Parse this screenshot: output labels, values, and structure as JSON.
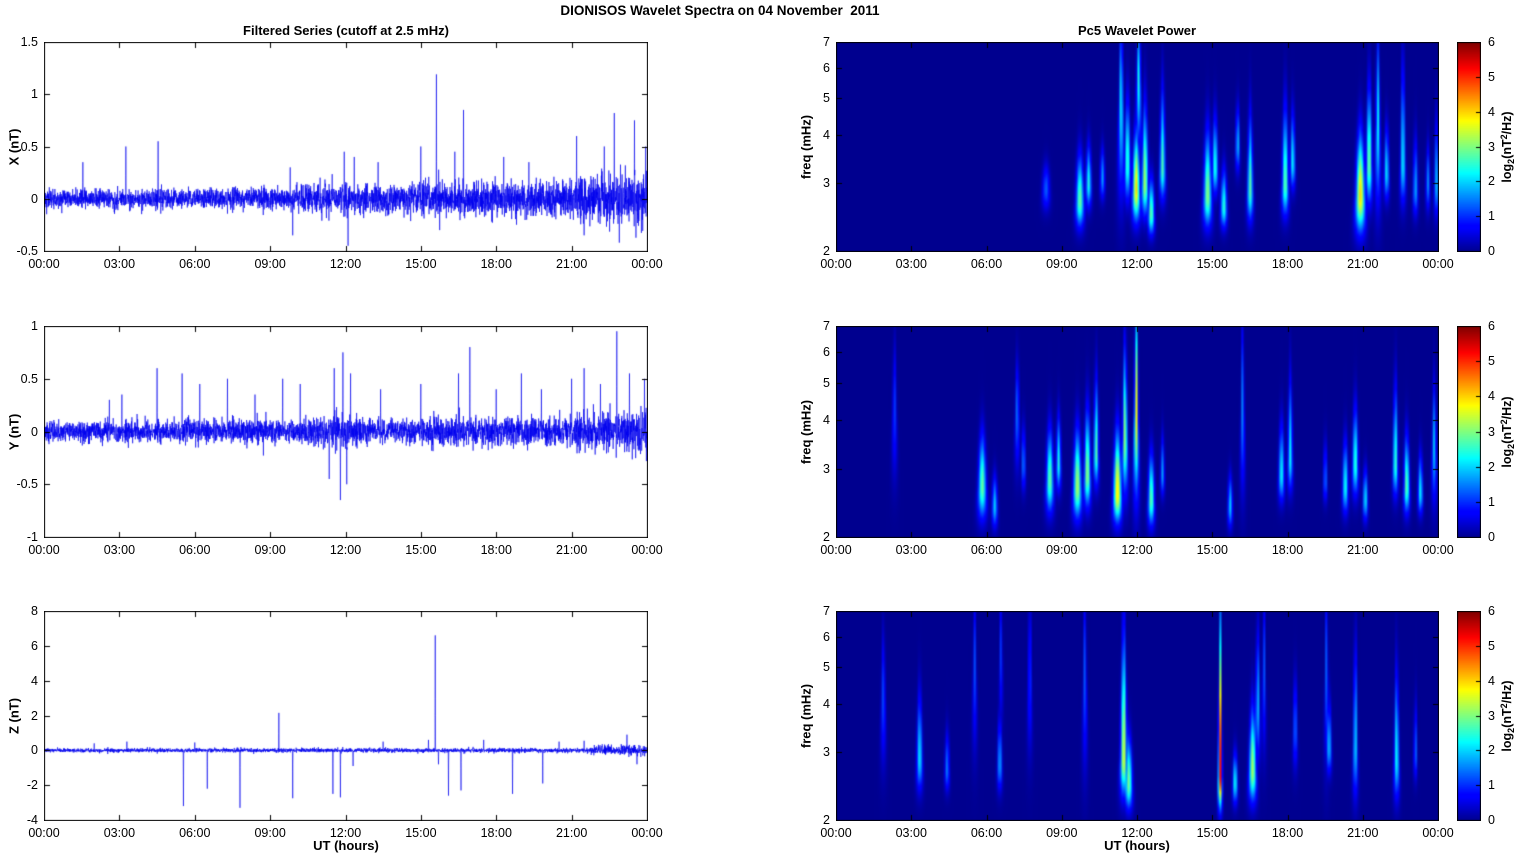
{
  "figure_title": "DIONISOS Wavelet Spectra on 04 November  2011",
  "titles": {
    "left": "Filtered Series (cutoff at 2.5 mHz)",
    "right": "Pc5 Wavelet Power"
  },
  "xlabel": "UT (hours)",
  "time_axis": {
    "tick_labels": [
      "00:00",
      "03:00",
      "06:00",
      "09:00",
      "12:00",
      "15:00",
      "18:00",
      "21:00",
      "00:00"
    ],
    "tick_hours": [
      0,
      3,
      6,
      9,
      12,
      15,
      18,
      21,
      24
    ],
    "range_hours": [
      0,
      24
    ]
  },
  "colorbar": {
    "label": "log2(nT^2/Hz)",
    "label_parts": {
      "pre": "log",
      "sub": "2",
      "mid": "(nT",
      "sup": "2",
      "post": "/Hz)"
    },
    "tick_labels": [
      "0",
      "1",
      "2",
      "3",
      "4",
      "5",
      "6"
    ],
    "range": [
      0,
      6
    ],
    "colormap": "jet"
  },
  "line_color": "#0000EE",
  "chart_data": [
    {
      "id": "ts-x",
      "type": "line",
      "row": 0,
      "col": "left",
      "ylabel": "X (nT)",
      "ylim": [
        -0.5,
        1.5
      ],
      "ytick_values": [
        -0.5,
        0,
        0.5,
        1,
        1.5
      ],
      "ytick_labels": [
        "-0.5",
        "0",
        "0.5",
        "1",
        "1.5"
      ],
      "seed": 42,
      "noise_envelope": [
        [
          0,
          0.045
        ],
        [
          9.5,
          0.05
        ],
        [
          10.2,
          0.068
        ],
        [
          14.6,
          0.068
        ],
        [
          15.0,
          0.082
        ],
        [
          20.6,
          0.082
        ],
        [
          21.0,
          0.105
        ],
        [
          23.0,
          0.12
        ],
        [
          24,
          0.13
        ]
      ],
      "spikes": [
        [
          1.55,
          0.35
        ],
        [
          3.26,
          0.5
        ],
        [
          4.54,
          0.55
        ],
        [
          9.8,
          0.3
        ],
        [
          9.9,
          -0.35
        ],
        [
          11.95,
          0.45
        ],
        [
          12.1,
          -0.45
        ],
        [
          12.35,
          0.4
        ],
        [
          13.3,
          0.35
        ],
        [
          15.0,
          0.5
        ],
        [
          15.62,
          1.19
        ],
        [
          15.75,
          -0.3
        ],
        [
          16.35,
          0.45
        ],
        [
          16.7,
          0.85
        ],
        [
          18.3,
          0.4
        ],
        [
          19.3,
          0.35
        ],
        [
          21.2,
          0.6
        ],
        [
          21.5,
          -0.35
        ],
        [
          22.3,
          0.5
        ],
        [
          22.7,
          0.82
        ],
        [
          22.9,
          -0.42
        ],
        [
          23.5,
          0.75
        ],
        [
          23.95,
          0.5
        ]
      ]
    },
    {
      "id": "ts-y",
      "type": "line",
      "row": 1,
      "col": "left",
      "ylabel": "Y (nT)",
      "ylim": [
        -1,
        1
      ],
      "ytick_values": [
        -1,
        -0.5,
        0,
        0.5,
        1
      ],
      "ytick_labels": [
        "-1",
        "-0.5",
        "0",
        "0.5",
        "1"
      ],
      "seed": 1337,
      "noise_envelope": [
        [
          0,
          0.05
        ],
        [
          10.4,
          0.055
        ],
        [
          10.8,
          0.08
        ],
        [
          12.6,
          0.08
        ],
        [
          13.0,
          0.055
        ],
        [
          14.9,
          0.055
        ],
        [
          15.3,
          0.068
        ],
        [
          20.9,
          0.068
        ],
        [
          21.3,
          0.088
        ],
        [
          24,
          0.1
        ]
      ],
      "spikes": [
        [
          2.6,
          0.3
        ],
        [
          3.1,
          0.35
        ],
        [
          4.5,
          0.6
        ],
        [
          5.5,
          0.55
        ],
        [
          6.2,
          0.45
        ],
        [
          7.3,
          0.5
        ],
        [
          8.4,
          0.35
        ],
        [
          9.5,
          0.5
        ],
        [
          10.2,
          0.45
        ],
        [
          11.35,
          -0.45
        ],
        [
          11.55,
          0.6
        ],
        [
          11.8,
          -0.65
        ],
        [
          11.9,
          0.75
        ],
        [
          12.05,
          -0.5
        ],
        [
          12.2,
          0.55
        ],
        [
          13.4,
          0.4
        ],
        [
          15.0,
          0.45
        ],
        [
          16.5,
          0.55
        ],
        [
          16.95,
          0.8
        ],
        [
          18.0,
          0.4
        ],
        [
          19.0,
          0.55
        ],
        [
          19.8,
          0.4
        ],
        [
          21.0,
          0.5
        ],
        [
          21.5,
          0.6
        ],
        [
          22.15,
          0.45
        ],
        [
          22.8,
          0.95
        ],
        [
          23.3,
          0.55
        ],
        [
          23.9,
          0.5
        ]
      ]
    },
    {
      "id": "ts-z",
      "type": "line",
      "row": 2,
      "col": "left",
      "ylabel": "Z (nT)",
      "ylim": [
        -4,
        8
      ],
      "ytick_values": [
        -4,
        -2,
        0,
        2,
        4,
        6,
        8
      ],
      "ytick_labels": [
        "-4",
        "-2",
        "0",
        "2",
        "4",
        "6",
        "8"
      ],
      "seed": 7,
      "noise_envelope": [
        [
          0,
          0.055
        ],
        [
          21.6,
          0.06
        ],
        [
          22.2,
          0.14
        ],
        [
          24,
          0.16
        ]
      ],
      "spikes": [
        [
          2.0,
          0.4
        ],
        [
          3.3,
          0.5
        ],
        [
          5.55,
          -3.2
        ],
        [
          6.0,
          0.45
        ],
        [
          6.5,
          -2.2
        ],
        [
          7.8,
          -3.3
        ],
        [
          9.35,
          2.15
        ],
        [
          9.9,
          -2.75
        ],
        [
          11.5,
          -2.5
        ],
        [
          11.8,
          -2.7
        ],
        [
          12.3,
          -0.9
        ],
        [
          13.5,
          0.5
        ],
        [
          15.3,
          0.6
        ],
        [
          15.57,
          6.6
        ],
        [
          15.7,
          -0.8
        ],
        [
          16.1,
          -2.6
        ],
        [
          16.6,
          -2.3
        ],
        [
          17.5,
          0.6
        ],
        [
          18.65,
          -2.5
        ],
        [
          19.85,
          -1.9
        ],
        [
          20.5,
          0.5
        ],
        [
          21.5,
          0.55
        ],
        [
          23.2,
          0.9
        ],
        [
          23.6,
          -0.8
        ]
      ]
    },
    {
      "id": "wav-x",
      "type": "heatmap",
      "row": 0,
      "col": "right",
      "ylabel": "freq (mHz)",
      "ylim": [
        2,
        7
      ],
      "yscale": "log",
      "ytick_values": [
        2,
        3,
        4,
        5,
        6,
        7
      ],
      "ytick_labels": [
        "2",
        "3",
        "4",
        "5",
        "6",
        "7"
      ],
      "zrange": [
        0,
        6
      ],
      "background_value": 0,
      "blob_format": "[t_hours, f_mHz, peak_log2_power, sigma_t_hours, sigma_lnf_up, sigma_lnf_down]",
      "blobs": [
        [
          8.35,
          2.9,
          1.3,
          0.1,
          0.1,
          0.08
        ],
        [
          9.7,
          2.7,
          2.9,
          0.1,
          0.18,
          0.1
        ],
        [
          10.05,
          3.0,
          2.4,
          0.07,
          0.15,
          0.09
        ],
        [
          10.6,
          3.1,
          1.7,
          0.06,
          0.12,
          0.08
        ],
        [
          11.35,
          5.0,
          2.3,
          0.05,
          0.3,
          0.35
        ],
        [
          11.6,
          3.4,
          2.7,
          0.07,
          0.25,
          0.14
        ],
        [
          11.95,
          2.9,
          4.0,
          0.09,
          0.22,
          0.12
        ],
        [
          12.05,
          5.6,
          2.4,
          0.05,
          0.22,
          0.25
        ],
        [
          12.3,
          3.0,
          3.3,
          0.08,
          0.3,
          0.12
        ],
        [
          12.55,
          2.5,
          2.9,
          0.08,
          0.14,
          0.08
        ],
        [
          13.0,
          3.3,
          2.7,
          0.07,
          0.3,
          0.12
        ],
        [
          14.8,
          2.8,
          3.1,
          0.1,
          0.25,
          0.12
        ],
        [
          15.1,
          3.3,
          2.5,
          0.07,
          0.2,
          0.1
        ],
        [
          15.45,
          2.6,
          2.5,
          0.08,
          0.15,
          0.08
        ],
        [
          16.0,
          3.8,
          2.0,
          0.05,
          0.15,
          0.1
        ],
        [
          16.5,
          2.9,
          2.8,
          0.07,
          0.28,
          0.12
        ],
        [
          17.9,
          3.0,
          2.9,
          0.08,
          0.3,
          0.12
        ],
        [
          18.2,
          3.4,
          2.3,
          0.06,
          0.2,
          0.1
        ],
        [
          20.9,
          2.8,
          4.0,
          0.11,
          0.24,
          0.14
        ],
        [
          21.25,
          3.4,
          3.1,
          0.07,
          0.3,
          0.15
        ],
        [
          21.6,
          4.3,
          2.3,
          0.05,
          0.35,
          0.3
        ],
        [
          21.95,
          3.2,
          2.2,
          0.06,
          0.18,
          0.1
        ],
        [
          22.6,
          3.4,
          2.3,
          0.06,
          0.4,
          0.15
        ],
        [
          23.1,
          2.9,
          1.8,
          0.06,
          0.2,
          0.1
        ],
        [
          23.6,
          3.0,
          1.6,
          0.05,
          0.15,
          0.1
        ],
        [
          23.95,
          3.0,
          2.0,
          0.06,
          0.25,
          0.12
        ]
      ]
    },
    {
      "id": "wav-y",
      "type": "heatmap",
      "row": 1,
      "col": "right",
      "ylabel": "freq (mHz)",
      "ylim": [
        2,
        7
      ],
      "yscale": "log",
      "ytick_values": [
        2,
        3,
        4,
        5,
        6,
        7
      ],
      "ytick_labels": [
        "2",
        "3",
        "4",
        "5",
        "6",
        "7"
      ],
      "zrange": [
        0,
        6
      ],
      "background_value": 0,
      "blob_format": "[t_hours, f_mHz, peak_log2_power, sigma_t_hours, sigma_lnf_up, sigma_lnf_down]",
      "blobs": [
        [
          2.3,
          4.3,
          1.1,
          0.05,
          0.25,
          0.25
        ],
        [
          5.8,
          2.7,
          2.9,
          0.1,
          0.2,
          0.12
        ],
        [
          6.3,
          2.4,
          2.0,
          0.07,
          0.12,
          0.08
        ],
        [
          7.2,
          4.2,
          1.5,
          0.05,
          0.2,
          0.2
        ],
        [
          7.45,
          3.1,
          1.6,
          0.05,
          0.15,
          0.1
        ],
        [
          8.5,
          2.8,
          2.9,
          0.09,
          0.2,
          0.12
        ],
        [
          8.85,
          3.1,
          2.4,
          0.06,
          0.18,
          0.1
        ],
        [
          9.6,
          2.7,
          3.3,
          0.1,
          0.22,
          0.12
        ],
        [
          10.0,
          2.9,
          3.2,
          0.08,
          0.25,
          0.12
        ],
        [
          10.35,
          3.3,
          2.8,
          0.06,
          0.28,
          0.12
        ],
        [
          11.2,
          2.6,
          4.0,
          0.1,
          0.24,
          0.11
        ],
        [
          11.5,
          3.6,
          3.2,
          0.06,
          0.35,
          0.2
        ],
        [
          11.95,
          4.2,
          3.8,
          0.045,
          0.42,
          0.3
        ],
        [
          12.55,
          2.5,
          2.9,
          0.08,
          0.18,
          0.1
        ],
        [
          13.0,
          2.9,
          1.7,
          0.05,
          0.15,
          0.08
        ],
        [
          15.7,
          2.4,
          2.0,
          0.06,
          0.12,
          0.08
        ],
        [
          16.2,
          4.3,
          1.6,
          0.04,
          0.35,
          0.3
        ],
        [
          17.75,
          2.9,
          2.3,
          0.07,
          0.2,
          0.1
        ],
        [
          18.1,
          3.2,
          2.3,
          0.06,
          0.3,
          0.12
        ],
        [
          19.5,
          2.8,
          1.5,
          0.05,
          0.15,
          0.08
        ],
        [
          20.3,
          2.7,
          2.4,
          0.07,
          0.18,
          0.1
        ],
        [
          20.7,
          3.1,
          2.6,
          0.07,
          0.22,
          0.12
        ],
        [
          21.1,
          2.5,
          2.2,
          0.06,
          0.12,
          0.08
        ],
        [
          22.3,
          3.1,
          2.7,
          0.06,
          0.3,
          0.12
        ],
        [
          22.75,
          2.7,
          2.9,
          0.07,
          0.2,
          0.1
        ],
        [
          23.3,
          2.6,
          2.3,
          0.06,
          0.15,
          0.08
        ],
        [
          23.85,
          3.4,
          2.0,
          0.05,
          0.25,
          0.2
        ]
      ]
    },
    {
      "id": "wav-z",
      "type": "heatmap",
      "row": 2,
      "col": "right",
      "ylabel": "freq (mHz)",
      "ylim": [
        2,
        7
      ],
      "yscale": "log",
      "ytick_values": [
        2,
        3,
        4,
        5,
        6,
        7
      ],
      "ytick_labels": [
        "2",
        "3",
        "4",
        "5",
        "6",
        "7"
      ],
      "zrange": [
        0,
        6
      ],
      "background_value": 0,
      "blob_format": "[t_hours, f_mHz, peak_log2_power, sigma_t_hours, sigma_lnf_up, sigma_lnf_down]",
      "blobs": [
        [
          1.85,
          4.2,
          1.2,
          0.05,
          0.25,
          0.25
        ],
        [
          3.3,
          2.9,
          2.2,
          0.07,
          0.25,
          0.12
        ],
        [
          4.4,
          2.7,
          1.5,
          0.06,
          0.15,
          0.08
        ],
        [
          5.5,
          5.0,
          1.2,
          0.04,
          0.3,
          0.3
        ],
        [
          6.5,
          2.8,
          1.8,
          0.06,
          0.18,
          0.1
        ],
        [
          6.55,
          5.5,
          1.1,
          0.035,
          0.25,
          0.25
        ],
        [
          7.7,
          5.0,
          1.2,
          0.04,
          0.3,
          0.3
        ],
        [
          9.9,
          4.8,
          1.3,
          0.04,
          0.35,
          0.35
        ],
        [
          11.45,
          2.9,
          3.6,
          0.08,
          0.5,
          0.14
        ],
        [
          11.65,
          2.5,
          3.0,
          0.09,
          0.18,
          0.1
        ],
        [
          15.3,
          2.6,
          5.3,
          0.045,
          0.62,
          0.12
        ],
        [
          15.9,
          2.5,
          2.4,
          0.06,
          0.12,
          0.08
        ],
        [
          16.6,
          2.7,
          3.3,
          0.09,
          0.24,
          0.12
        ],
        [
          16.8,
          4.0,
          2.0,
          0.05,
          0.3,
          0.2
        ],
        [
          17.05,
          5.0,
          1.3,
          0.035,
          0.3,
          0.3
        ],
        [
          18.3,
          3.5,
          1.5,
          0.05,
          0.2,
          0.15
        ],
        [
          19.55,
          5.0,
          1.4,
          0.035,
          0.35,
          0.35
        ],
        [
          19.65,
          3.1,
          2.0,
          0.06,
          0.18,
          0.1
        ],
        [
          20.7,
          3.2,
          2.2,
          0.05,
          0.4,
          0.2
        ],
        [
          22.35,
          2.9,
          2.4,
          0.06,
          0.35,
          0.15
        ],
        [
          23.1,
          3.0,
          1.5,
          0.04,
          0.2,
          0.1
        ]
      ]
    }
  ]
}
